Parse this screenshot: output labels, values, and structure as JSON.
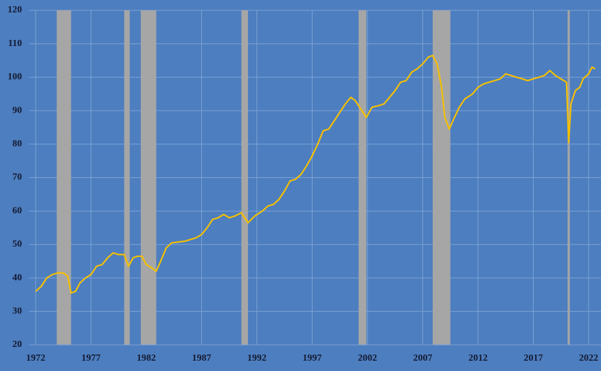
{
  "chart_data": {
    "type": "line",
    "xlim": [
      1971.38,
      2023.12
    ],
    "ylim": [
      20,
      120
    ],
    "xticks": [
      1972,
      1977,
      1982,
      1987,
      1992,
      1997,
      2002,
      2007,
      2012,
      2017,
      2022
    ],
    "yticks": [
      20,
      30,
      40,
      50,
      60,
      70,
      80,
      90,
      100,
      110,
      120
    ],
    "grid": true,
    "recession_color": "#a6a6a6",
    "recessions": [
      [
        1973.9,
        1975.2
      ],
      [
        1980.0,
        1980.5
      ],
      [
        1981.5,
        1982.9
      ],
      [
        1990.6,
        1991.2
      ],
      [
        2001.2,
        2001.9
      ],
      [
        2007.9,
        2009.5
      ],
      [
        2020.1,
        2020.3
      ]
    ],
    "series": [
      {
        "color": "#f5c000",
        "x": [
          1972.0,
          1972.5,
          1973.0,
          1973.5,
          1974.0,
          1974.5,
          1974.9,
          1975.2,
          1975.6,
          1976.0,
          1976.5,
          1977.0,
          1977.5,
          1978.0,
          1978.5,
          1979.0,
          1979.5,
          1980.0,
          1980.4,
          1980.8,
          1981.2,
          1981.6,
          1982.0,
          1982.5,
          1982.9,
          1983.3,
          1983.8,
          1984.3,
          1985.0,
          1985.5,
          1986.0,
          1986.5,
          1987.0,
          1987.5,
          1988.0,
          1988.5,
          1989.0,
          1989.5,
          1990.0,
          1990.6,
          1991.2,
          1991.8,
          1992.5,
          1993.0,
          1993.5,
          1994.0,
          1994.5,
          1995.0,
          1995.5,
          1996.0,
          1996.5,
          1997.0,
          1997.5,
          1998.0,
          1998.5,
          1999.0,
          1999.5,
          2000.0,
          2000.5,
          2000.9,
          2001.5,
          2001.9,
          2002.4,
          2003.0,
          2003.5,
          2004.0,
          2004.5,
          2005.0,
          2005.5,
          2006.0,
          2006.5,
          2007.0,
          2007.5,
          2007.9,
          2008.3,
          2008.7,
          2009.0,
          2009.4,
          2009.8,
          2010.3,
          2010.8,
          2011.5,
          2012.0,
          2012.5,
          2013.0,
          2013.5,
          2014.0,
          2014.5,
          2015.0,
          2015.5,
          2016.0,
          2016.5,
          2017.0,
          2017.5,
          2018.0,
          2018.5,
          2019.0,
          2019.5,
          2020.0,
          2020.2,
          2020.4,
          2020.8,
          2021.2,
          2021.5,
          2022.0,
          2022.3,
          2022.6
        ],
        "values": [
          36,
          37.5,
          40,
          41,
          41.5,
          41.5,
          40.5,
          35.5,
          36,
          38.5,
          40,
          41,
          43.5,
          44,
          46,
          47.5,
          47,
          47,
          43.5,
          46,
          46.5,
          46.5,
          44,
          43,
          42,
          45,
          49,
          50.5,
          50.8,
          51,
          51.5,
          52,
          53,
          55,
          57.5,
          58,
          59,
          58,
          58.5,
          59.5,
          56.5,
          58.5,
          60,
          61.5,
          62,
          63.5,
          66,
          69,
          69.5,
          71,
          73.5,
          76.5,
          80,
          84,
          84.5,
          87,
          89.5,
          92,
          94,
          93,
          90,
          88,
          91,
          91.5,
          92,
          94,
          96,
          98.5,
          99,
          101.5,
          102.5,
          104,
          106,
          106.5,
          104,
          97,
          88,
          84.5,
          87.5,
          91,
          93.5,
          95,
          97,
          98,
          98.5,
          99,
          99.5,
          101,
          100.5,
          100,
          99.5,
          99,
          99.5,
          100,
          100.5,
          102,
          100.5,
          99.5,
          98.5,
          80.5,
          92,
          96,
          97,
          99.5,
          101,
          103,
          102.5
        ]
      }
    ]
  }
}
